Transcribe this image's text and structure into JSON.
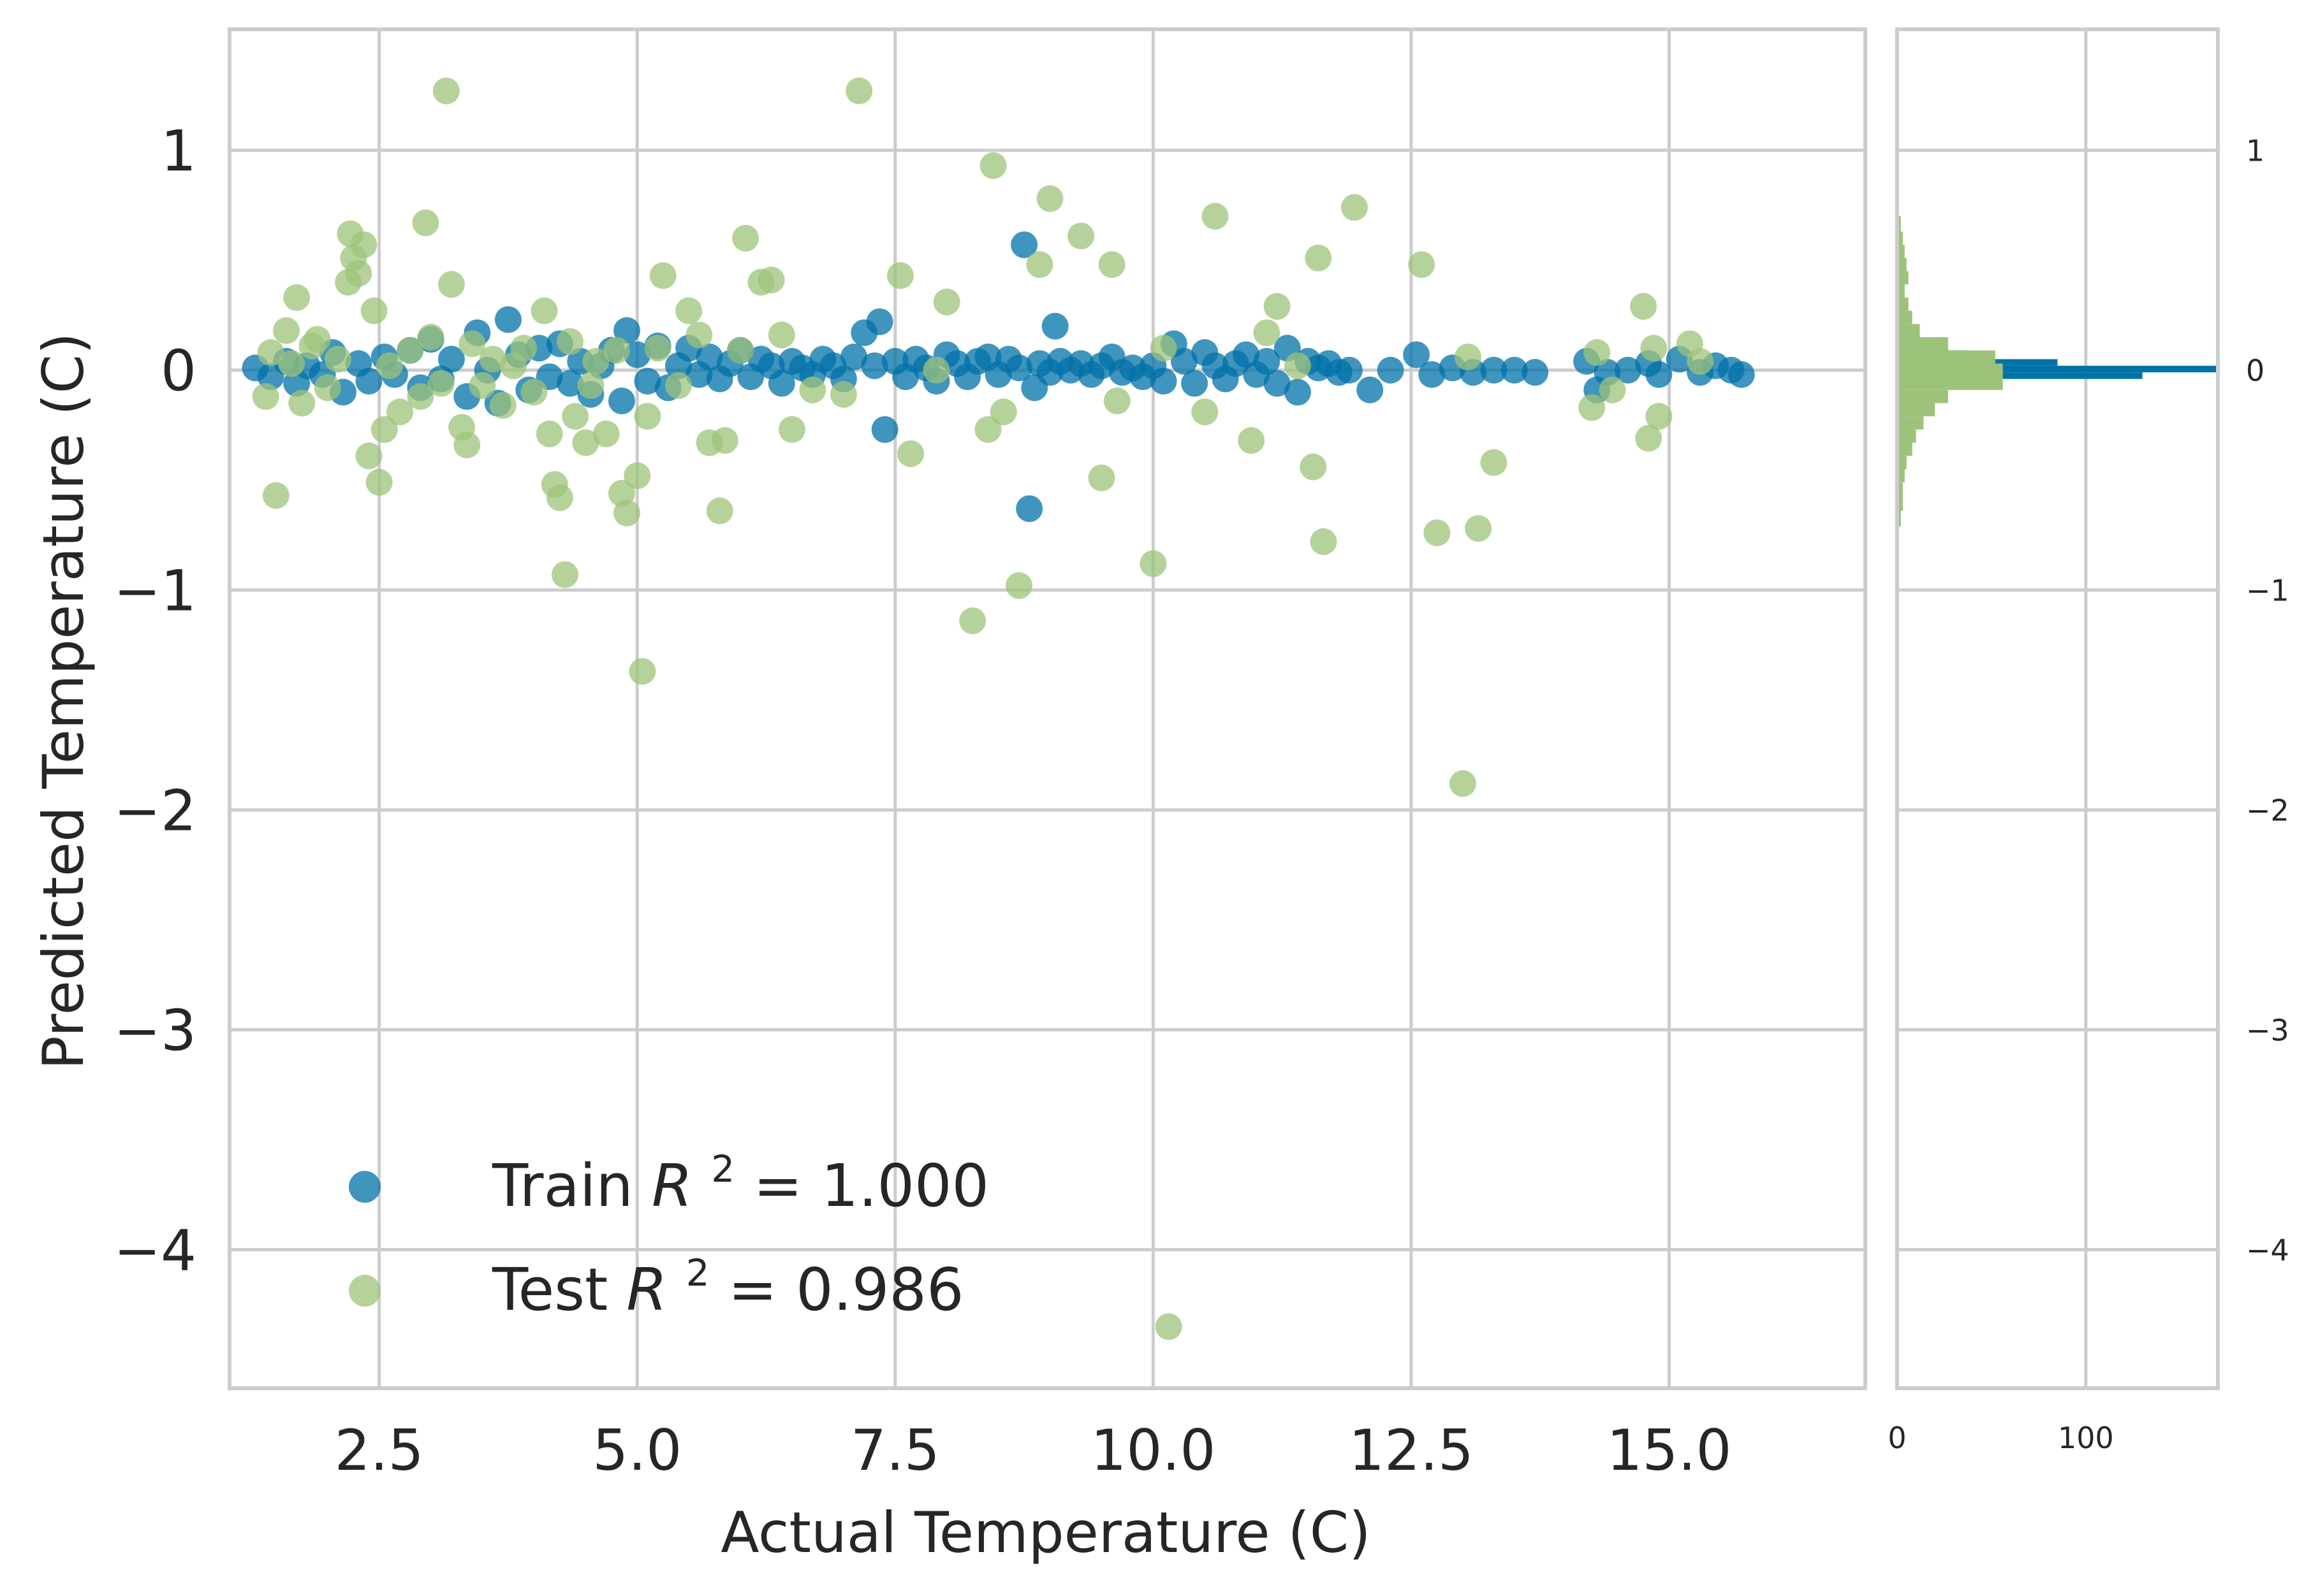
{
  "chart_data": {
    "type": "scatter",
    "title": "",
    "xlabel": "Actual Temperature (C)",
    "ylabel": "Predicted Temperature (C)",
    "xlim": [
      1.05,
      16.9
    ],
    "ylim": [
      -4.63,
      1.55
    ],
    "xticks": [
      2.5,
      5.0,
      7.5,
      10.0,
      12.5,
      15.0
    ],
    "xtick_labels": [
      "2.5",
      "5.0",
      "7.5",
      "10.0",
      "12.5",
      "15.0"
    ],
    "yticks": [
      1,
      0,
      -1,
      -2,
      -3,
      -4
    ],
    "ytick_labels": [
      "1",
      "0",
      "−1",
      "−2",
      "−3",
      "−4"
    ],
    "grid": true,
    "legend_position": "lower-left",
    "series": [
      {
        "name": "Train R^2 = 1.000",
        "legend_label": "Train",
        "legend_math": "R",
        "legend_sup": "2",
        "legend_value": " = 1.000",
        "color": "#0072a8",
        "points": [
          [
            1.3,
            0.01
          ],
          [
            1.45,
            -0.03
          ],
          [
            1.6,
            0.04
          ],
          [
            1.7,
            -0.06
          ],
          [
            1.8,
            0.02
          ],
          [
            1.95,
            -0.02
          ],
          [
            2.05,
            0.08
          ],
          [
            2.15,
            -0.1
          ],
          [
            2.3,
            0.03
          ],
          [
            2.4,
            -0.05
          ],
          [
            2.55,
            0.06
          ],
          [
            2.65,
            -0.02
          ],
          [
            2.8,
            0.09
          ],
          [
            2.9,
            -0.08
          ],
          [
            3.0,
            0.14
          ],
          [
            3.1,
            -0.04
          ],
          [
            3.2,
            0.05
          ],
          [
            3.35,
            -0.12
          ],
          [
            3.45,
            0.17
          ],
          [
            3.55,
            0.0
          ],
          [
            3.65,
            -0.15
          ],
          [
            3.75,
            0.23
          ],
          [
            3.85,
            0.07
          ],
          [
            3.95,
            -0.09
          ],
          [
            4.05,
            0.1
          ],
          [
            4.15,
            -0.03
          ],
          [
            4.25,
            0.12
          ],
          [
            4.35,
            -0.06
          ],
          [
            4.45,
            0.04
          ],
          [
            4.55,
            -0.11
          ],
          [
            4.65,
            0.02
          ],
          [
            4.75,
            0.09
          ],
          [
            4.85,
            -0.14
          ],
          [
            4.9,
            0.18
          ],
          [
            5.0,
            0.07
          ],
          [
            5.1,
            -0.05
          ],
          [
            5.2,
            0.11
          ],
          [
            5.3,
            -0.08
          ],
          [
            5.4,
            0.02
          ],
          [
            5.5,
            0.1
          ],
          [
            5.6,
            -0.02
          ],
          [
            5.7,
            0.06
          ],
          [
            5.8,
            -0.04
          ],
          [
            5.9,
            0.03
          ],
          [
            6.0,
            0.09
          ],
          [
            6.1,
            -0.03
          ],
          [
            6.2,
            0.05
          ],
          [
            6.3,
            0.02
          ],
          [
            6.4,
            -0.06
          ],
          [
            6.5,
            0.04
          ],
          [
            6.6,
            0.01
          ],
          [
            6.7,
            -0.02
          ],
          [
            6.8,
            0.05
          ],
          [
            6.9,
            0.02
          ],
          [
            7.0,
            -0.04
          ],
          [
            7.1,
            0.06
          ],
          [
            7.2,
            0.17
          ],
          [
            7.3,
            0.02
          ],
          [
            7.35,
            0.22
          ],
          [
            7.4,
            -0.27
          ],
          [
            7.5,
            0.04
          ],
          [
            7.6,
            -0.03
          ],
          [
            7.7,
            0.05
          ],
          [
            7.8,
            0.01
          ],
          [
            7.9,
            -0.05
          ],
          [
            8.0,
            0.07
          ],
          [
            8.1,
            0.03
          ],
          [
            8.2,
            -0.03
          ],
          [
            8.3,
            0.04
          ],
          [
            8.4,
            0.06
          ],
          [
            8.5,
            -0.02
          ],
          [
            8.6,
            0.05
          ],
          [
            8.7,
            0.01
          ],
          [
            8.75,
            0.57
          ],
          [
            8.8,
            -0.63
          ],
          [
            8.85,
            -0.08
          ],
          [
            8.9,
            0.03
          ],
          [
            9.0,
            -0.01
          ],
          [
            9.05,
            0.2
          ],
          [
            9.1,
            0.04
          ],
          [
            9.2,
            0.0
          ],
          [
            9.3,
            0.03
          ],
          [
            9.4,
            -0.02
          ],
          [
            9.5,
            0.02
          ],
          [
            9.6,
            0.06
          ],
          [
            9.7,
            -0.01
          ],
          [
            9.8,
            0.01
          ],
          [
            9.9,
            -0.03
          ],
          [
            10.0,
            0.02
          ],
          [
            10.1,
            -0.05
          ],
          [
            10.2,
            0.12
          ],
          [
            10.3,
            0.04
          ],
          [
            10.4,
            -0.06
          ],
          [
            10.5,
            0.08
          ],
          [
            10.6,
            0.02
          ],
          [
            10.7,
            -0.04
          ],
          [
            10.8,
            0.03
          ],
          [
            10.9,
            0.07
          ],
          [
            11.0,
            -0.02
          ],
          [
            11.1,
            0.04
          ],
          [
            11.2,
            -0.06
          ],
          [
            11.3,
            0.1
          ],
          [
            11.4,
            -0.1
          ],
          [
            11.5,
            0.04
          ],
          [
            11.6,
            0.01
          ],
          [
            11.7,
            0.03
          ],
          [
            11.8,
            -0.01
          ],
          [
            11.9,
            0.0
          ],
          [
            12.1,
            -0.09
          ],
          [
            12.3,
            0.0
          ],
          [
            12.55,
            0.07
          ],
          [
            12.7,
            -0.02
          ],
          [
            12.9,
            0.01
          ],
          [
            13.1,
            -0.01
          ],
          [
            13.3,
            0.0
          ],
          [
            13.5,
            0.0
          ],
          [
            13.7,
            -0.01
          ],
          [
            14.2,
            0.04
          ],
          [
            14.3,
            -0.09
          ],
          [
            14.4,
            -0.01
          ],
          [
            14.6,
            0.0
          ],
          [
            14.8,
            0.03
          ],
          [
            14.9,
            -0.02
          ],
          [
            15.1,
            0.05
          ],
          [
            15.3,
            -0.01
          ],
          [
            15.45,
            0.02
          ],
          [
            15.6,
            0.0
          ],
          [
            15.7,
            -0.02
          ]
        ]
      },
      {
        "name": "Test R^2 = 0.986",
        "legend_label": "Test",
        "legend_math": "R",
        "legend_sup": "2",
        "legend_value": " = 0.986",
        "color": "#9dc37a",
        "points": [
          [
            1.4,
            -0.12
          ],
          [
            1.45,
            0.08
          ],
          [
            1.5,
            -0.57
          ],
          [
            1.6,
            0.18
          ],
          [
            1.65,
            0.03
          ],
          [
            1.7,
            0.33
          ],
          [
            1.75,
            -0.15
          ],
          [
            1.85,
            0.11
          ],
          [
            1.9,
            0.14
          ],
          [
            2.0,
            -0.08
          ],
          [
            2.1,
            0.05
          ],
          [
            2.2,
            0.4
          ],
          [
            2.22,
            0.62
          ],
          [
            2.25,
            0.51
          ],
          [
            2.3,
            0.44
          ],
          [
            2.35,
            0.57
          ],
          [
            2.4,
            -0.39
          ],
          [
            2.45,
            0.27
          ],
          [
            2.5,
            -0.51
          ],
          [
            2.55,
            -0.27
          ],
          [
            2.6,
            0.02
          ],
          [
            2.7,
            -0.19
          ],
          [
            2.8,
            0.09
          ],
          [
            2.9,
            -0.12
          ],
          [
            2.95,
            0.67
          ],
          [
            3.0,
            0.15
          ],
          [
            3.1,
            -0.06
          ],
          [
            3.15,
            1.27
          ],
          [
            3.2,
            0.39
          ],
          [
            3.3,
            -0.26
          ],
          [
            3.35,
            -0.34
          ],
          [
            3.4,
            0.12
          ],
          [
            3.5,
            -0.07
          ],
          [
            3.6,
            0.05
          ],
          [
            3.7,
            -0.16
          ],
          [
            3.8,
            0.02
          ],
          [
            3.9,
            0.1
          ],
          [
            4.0,
            -0.1
          ],
          [
            4.1,
            0.27
          ],
          [
            4.15,
            -0.29
          ],
          [
            4.2,
            -0.52
          ],
          [
            4.25,
            -0.58
          ],
          [
            4.3,
            -0.93
          ],
          [
            4.35,
            0.13
          ],
          [
            4.4,
            -0.21
          ],
          [
            4.5,
            -0.33
          ],
          [
            4.55,
            -0.07
          ],
          [
            4.6,
            0.04
          ],
          [
            4.7,
            -0.29
          ],
          [
            4.8,
            0.09
          ],
          [
            4.85,
            -0.56
          ],
          [
            4.9,
            -0.65
          ],
          [
            5.0,
            -0.48
          ],
          [
            5.05,
            -1.37
          ],
          [
            5.1,
            -0.21
          ],
          [
            5.2,
            0.1
          ],
          [
            5.25,
            0.43
          ],
          [
            5.4,
            -0.07
          ],
          [
            5.5,
            0.27
          ],
          [
            5.6,
            0.16
          ],
          [
            5.7,
            -0.33
          ],
          [
            5.8,
            -0.64
          ],
          [
            5.85,
            -0.32
          ],
          [
            6.0,
            0.09
          ],
          [
            6.05,
            0.6
          ],
          [
            6.2,
            0.4
          ],
          [
            6.3,
            0.41
          ],
          [
            6.4,
            0.16
          ],
          [
            6.5,
            -0.27
          ],
          [
            6.7,
            -0.09
          ],
          [
            7.0,
            -0.11
          ],
          [
            7.15,
            1.27
          ],
          [
            7.55,
            0.43
          ],
          [
            7.65,
            -0.38
          ],
          [
            7.9,
            0.0
          ],
          [
            8.0,
            0.31
          ],
          [
            8.25,
            -1.14
          ],
          [
            8.4,
            -0.27
          ],
          [
            8.45,
            0.93
          ],
          [
            8.55,
            -0.19
          ],
          [
            8.7,
            -0.98
          ],
          [
            8.9,
            0.48
          ],
          [
            9.0,
            0.78
          ],
          [
            9.3,
            0.61
          ],
          [
            9.5,
            -0.49
          ],
          [
            9.6,
            0.48
          ],
          [
            9.65,
            -0.14
          ],
          [
            10.0,
            -0.88
          ],
          [
            10.1,
            0.1
          ],
          [
            10.15,
            -4.35
          ],
          [
            10.5,
            -0.19
          ],
          [
            10.6,
            0.7
          ],
          [
            10.95,
            -0.32
          ],
          [
            11.1,
            0.17
          ],
          [
            11.2,
            0.29
          ],
          [
            11.4,
            0.02
          ],
          [
            11.55,
            -0.44
          ],
          [
            11.6,
            0.51
          ],
          [
            11.65,
            -0.78
          ],
          [
            11.95,
            0.74
          ],
          [
            12.6,
            0.48
          ],
          [
            12.75,
            -0.74
          ],
          [
            13.0,
            -1.88
          ],
          [
            13.05,
            0.06
          ],
          [
            13.15,
            -0.72
          ],
          [
            13.3,
            -0.42
          ],
          [
            14.25,
            -0.17
          ],
          [
            14.3,
            0.08
          ],
          [
            14.45,
            -0.09
          ],
          [
            14.75,
            0.29
          ],
          [
            14.8,
            -0.31
          ],
          [
            14.85,
            0.1
          ],
          [
            14.9,
            -0.21
          ],
          [
            15.2,
            0.12
          ],
          [
            15.3,
            0.04
          ]
        ]
      }
    ],
    "marginal_histogram": {
      "orientation": "horizontal",
      "xlim": [
        0,
        170
      ],
      "xticks": [
        0,
        100
      ],
      "xtick_labels": [
        "0",
        "100"
      ],
      "yticks": [
        1,
        0,
        -1,
        -2,
        -3,
        -4
      ],
      "ytick_labels": [
        "1",
        "0",
        "−1",
        "−2",
        "−3",
        "−4"
      ],
      "train_bins": [
        {
          "y0": -0.08,
          "y1": -0.04,
          "count": 16
        },
        {
          "y0": -0.04,
          "y1": -0.01,
          "count": 130
        },
        {
          "y0": -0.01,
          "y1": 0.02,
          "count": 170
        },
        {
          "y0": 0.02,
          "y1": 0.05,
          "count": 85
        },
        {
          "y0": 0.05,
          "y1": 0.09,
          "count": 38
        }
      ],
      "test_bins": [
        {
          "y0": -0.78,
          "y1": -0.71,
          "count": 1
        },
        {
          "y0": -0.71,
          "y1": -0.64,
          "count": 2
        },
        {
          "y0": -0.64,
          "y1": -0.57,
          "count": 3
        },
        {
          "y0": -0.57,
          "y1": -0.51,
          "count": 3
        },
        {
          "y0": -0.51,
          "y1": -0.45,
          "count": 4
        },
        {
          "y0": -0.45,
          "y1": -0.39,
          "count": 5
        },
        {
          "y0": -0.39,
          "y1": -0.33,
          "count": 8
        },
        {
          "y0": -0.33,
          "y1": -0.27,
          "count": 10
        },
        {
          "y0": -0.27,
          "y1": -0.21,
          "count": 14
        },
        {
          "y0": -0.21,
          "y1": -0.15,
          "count": 20
        },
        {
          "y0": -0.15,
          "y1": -0.09,
          "count": 27
        },
        {
          "y0": -0.09,
          "y1": -0.03,
          "count": 56
        },
        {
          "y0": -0.03,
          "y1": 0.03,
          "count": 56
        },
        {
          "y0": 0.03,
          "y1": 0.09,
          "count": 52
        },
        {
          "y0": 0.09,
          "y1": 0.15,
          "count": 27
        },
        {
          "y0": 0.15,
          "y1": 0.21,
          "count": 12
        },
        {
          "y0": 0.21,
          "y1": 0.27,
          "count": 8
        },
        {
          "y0": 0.27,
          "y1": 0.33,
          "count": 6
        },
        {
          "y0": 0.33,
          "y1": 0.39,
          "count": 4
        },
        {
          "y0": 0.39,
          "y1": 0.45,
          "count": 6
        },
        {
          "y0": 0.45,
          "y1": 0.51,
          "count": 5
        },
        {
          "y0": 0.51,
          "y1": 0.57,
          "count": 4
        },
        {
          "y0": 0.57,
          "y1": 0.63,
          "count": 3
        },
        {
          "y0": 0.63,
          "y1": 0.7,
          "count": 2
        }
      ]
    }
  }
}
